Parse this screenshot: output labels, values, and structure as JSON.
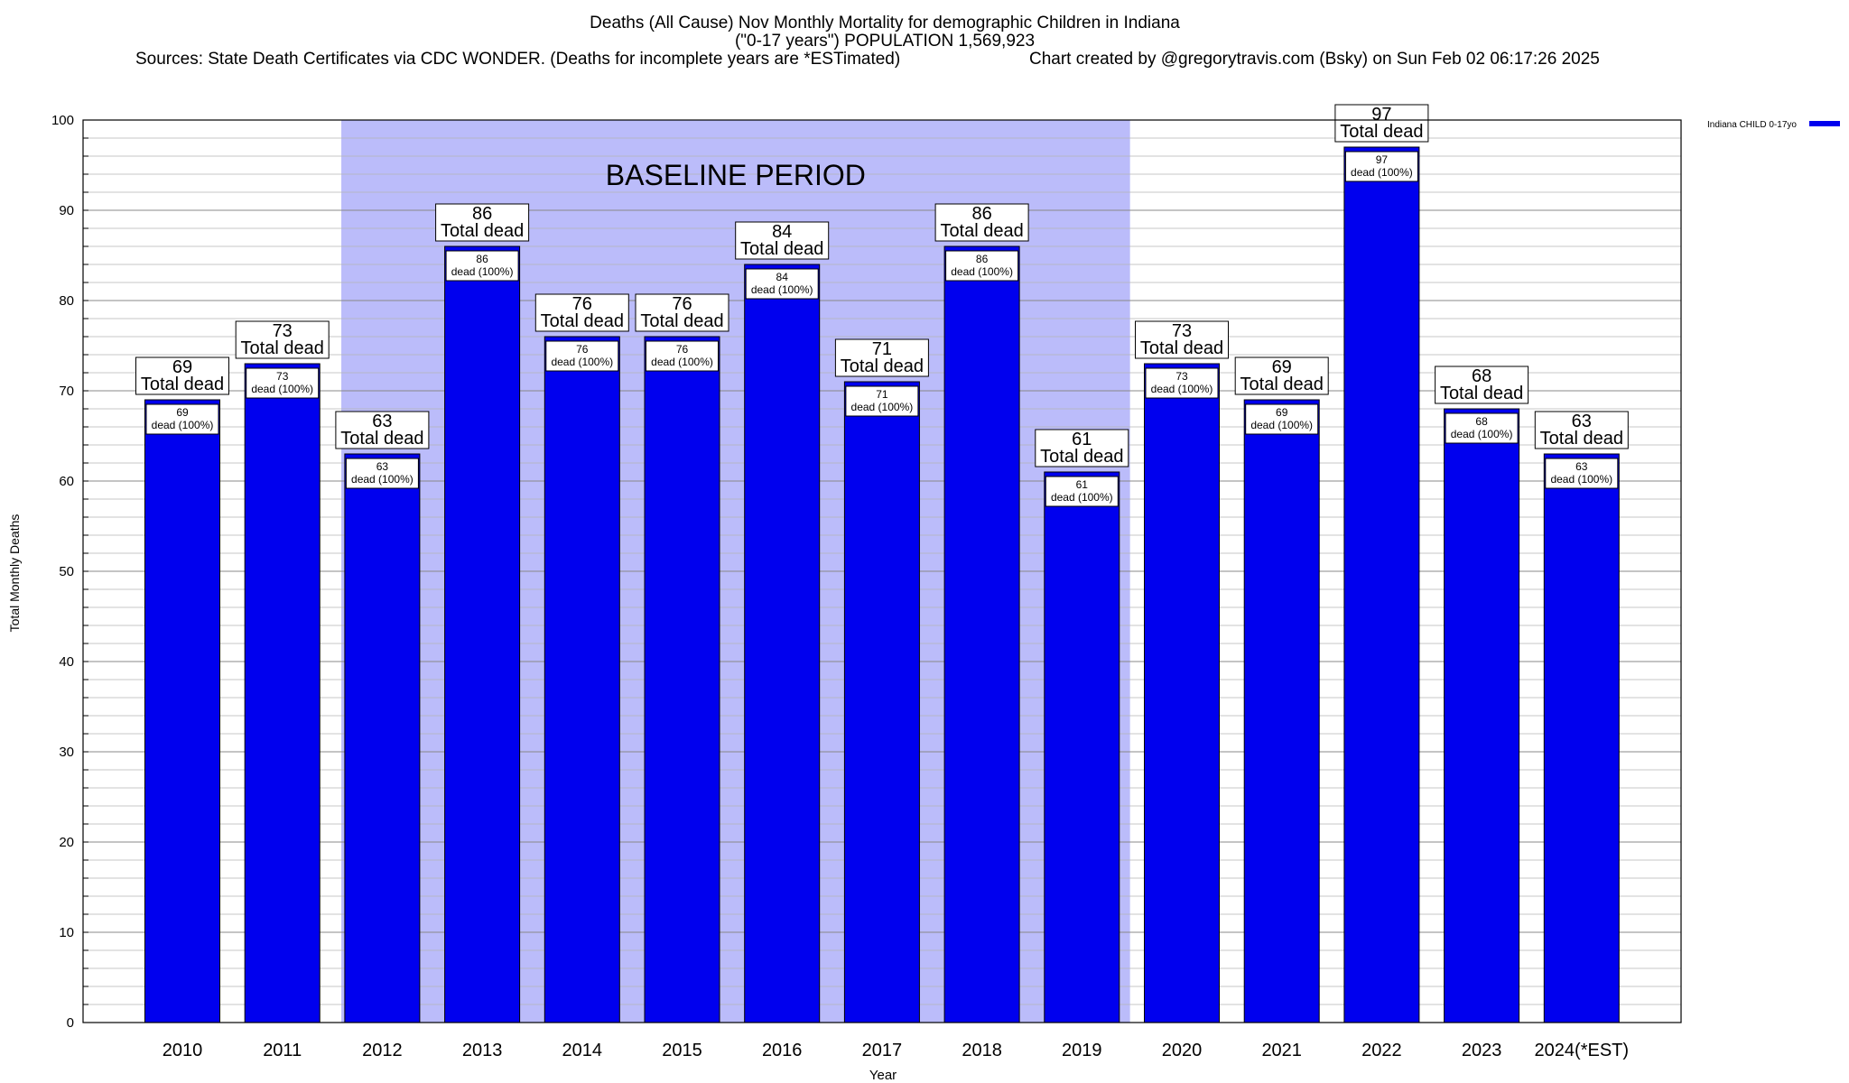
{
  "chart_data": {
    "type": "bar",
    "title_line1": "Deaths (All Cause) Nov Monthly Mortality for demographic Children in Indiana",
    "title_line2": "(\"0-17 years\") POPULATION 1,569,923",
    "sources": "Sources: State Death Certificates via CDC WONDER. (Deaths for incomplete years are *ESTimated)",
    "credit": "Chart created by @gregorytravis.com (Bsky) on Sun Feb 02 06:17:26 2025",
    "xlabel": "Year",
    "ylabel": "Total Monthly Deaths",
    "ylim": [
      0,
      100
    ],
    "yticks": [
      0,
      10,
      20,
      30,
      40,
      50,
      60,
      70,
      80,
      90,
      100
    ],
    "grid": true,
    "legend_position": "top-right",
    "baseline_label": "BASELINE PERIOD",
    "baseline_range": [
      "2012",
      "2019"
    ],
    "categories": [
      "2010",
      "2011",
      "2012",
      "2013",
      "2014",
      "2015",
      "2016",
      "2017",
      "2018",
      "2019",
      "2020",
      "2021",
      "2022",
      "2023",
      "2024(*EST)"
    ],
    "series": [
      {
        "name": "Indiana CHILD 0-17yo",
        "values": [
          69,
          73,
          63,
          86,
          76,
          76,
          84,
          71,
          86,
          61,
          73,
          69,
          97,
          68,
          63
        ]
      }
    ],
    "total_label_suffix": "Total dead",
    "inner_label_suffix": "dead (100%)",
    "colors": {
      "bar": "#0000ee",
      "baseline_band": "#bbbcfa",
      "grid": "#aaaaaa",
      "label_box": "#ffffff"
    }
  }
}
